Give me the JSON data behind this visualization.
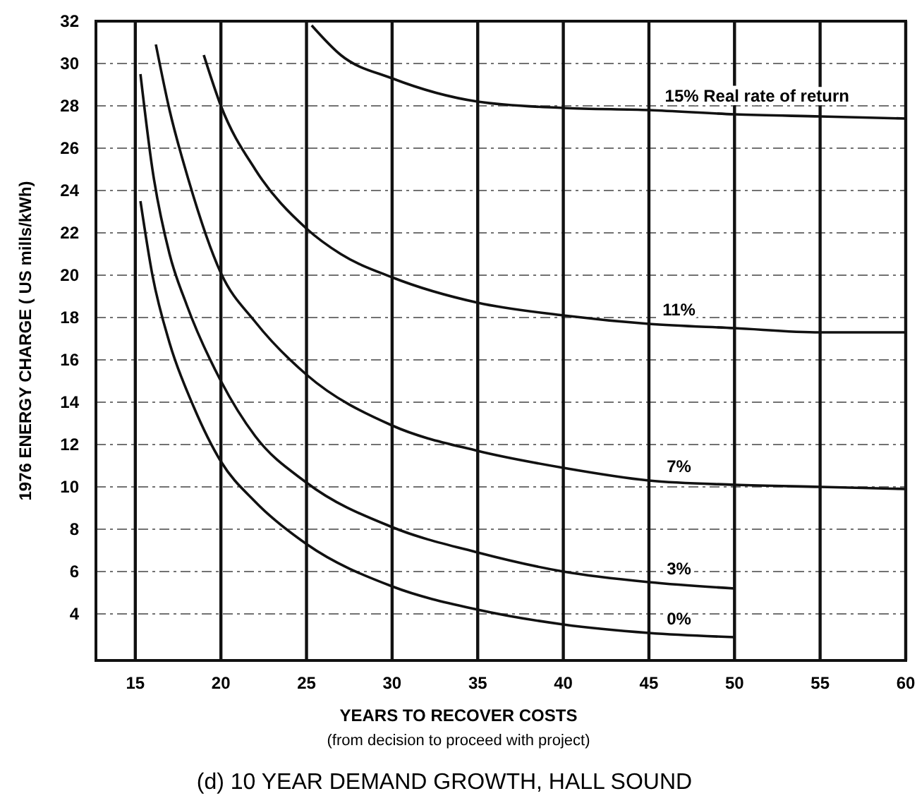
{
  "chart_data": {
    "type": "line",
    "title": "(d) 10 YEAR DEMAND GROWTH, HALL SOUND",
    "xlabel": "YEARS TO RECOVER COSTS",
    "ylabel": "1976  ENERGY  CHARGE ( US mills/kWh)",
    "annotations": [
      "(from decision to proceed with project)"
    ],
    "series": [
      {
        "name": "15% Real rate of return",
        "color": "#111111",
        "x": [
          25.3,
          27,
          30,
          35,
          40,
          45,
          50,
          55,
          60
        ],
        "values": [
          31.8,
          30.4,
          29.3,
          28.2,
          27.9,
          27.8,
          27.6,
          27.5,
          27.4
        ]
      },
      {
        "name": "11%",
        "color": "#111111",
        "x": [
          19,
          20,
          22,
          25,
          27,
          30,
          35,
          40,
          45,
          50,
          55,
          60
        ],
        "values": [
          30.4,
          28,
          25,
          22.2,
          21,
          19.9,
          18.7,
          18.1,
          17.7,
          17.5,
          17.3,
          17.3
        ]
      },
      {
        "name": "7%",
        "color": "#111111",
        "x": [
          16.2,
          17,
          18,
          20,
          22,
          25,
          30,
          35,
          40,
          45,
          50,
          55,
          60
        ],
        "values": [
          30.9,
          27.8,
          24.8,
          20.1,
          17.8,
          15.3,
          12.9,
          11.7,
          10.9,
          10.3,
          10.1,
          10,
          9.9
        ]
      },
      {
        "name": "3%",
        "color": "#111111",
        "x": [
          15.3,
          16,
          17,
          18,
          20,
          22,
          25,
          30,
          35,
          40,
          45,
          50
        ],
        "values": [
          29.5,
          25,
          21,
          18.6,
          15,
          12.4,
          10.2,
          8.1,
          6.9,
          6,
          5.5,
          5.2
        ]
      },
      {
        "name": "0%",
        "color": "#111111",
        "x": [
          15.3,
          16,
          17,
          18.4,
          20,
          22,
          25,
          30,
          35,
          40,
          45,
          50
        ],
        "values": [
          23.5,
          20,
          16.8,
          13.8,
          11.2,
          9.3,
          7.3,
          5.3,
          4.2,
          3.5,
          3.1,
          2.9
        ]
      }
    ],
    "xlim": [
      12.7,
      60
    ],
    "ylim": [
      1.8,
      32
    ],
    "xticks": [
      15,
      20,
      25,
      30,
      35,
      40,
      45,
      50,
      55,
      60
    ],
    "yticks": [
      4,
      6,
      8,
      10,
      12,
      14,
      16,
      18,
      20,
      22,
      24,
      26,
      28,
      30,
      32
    ],
    "grid": true,
    "line_style": "solid"
  }
}
